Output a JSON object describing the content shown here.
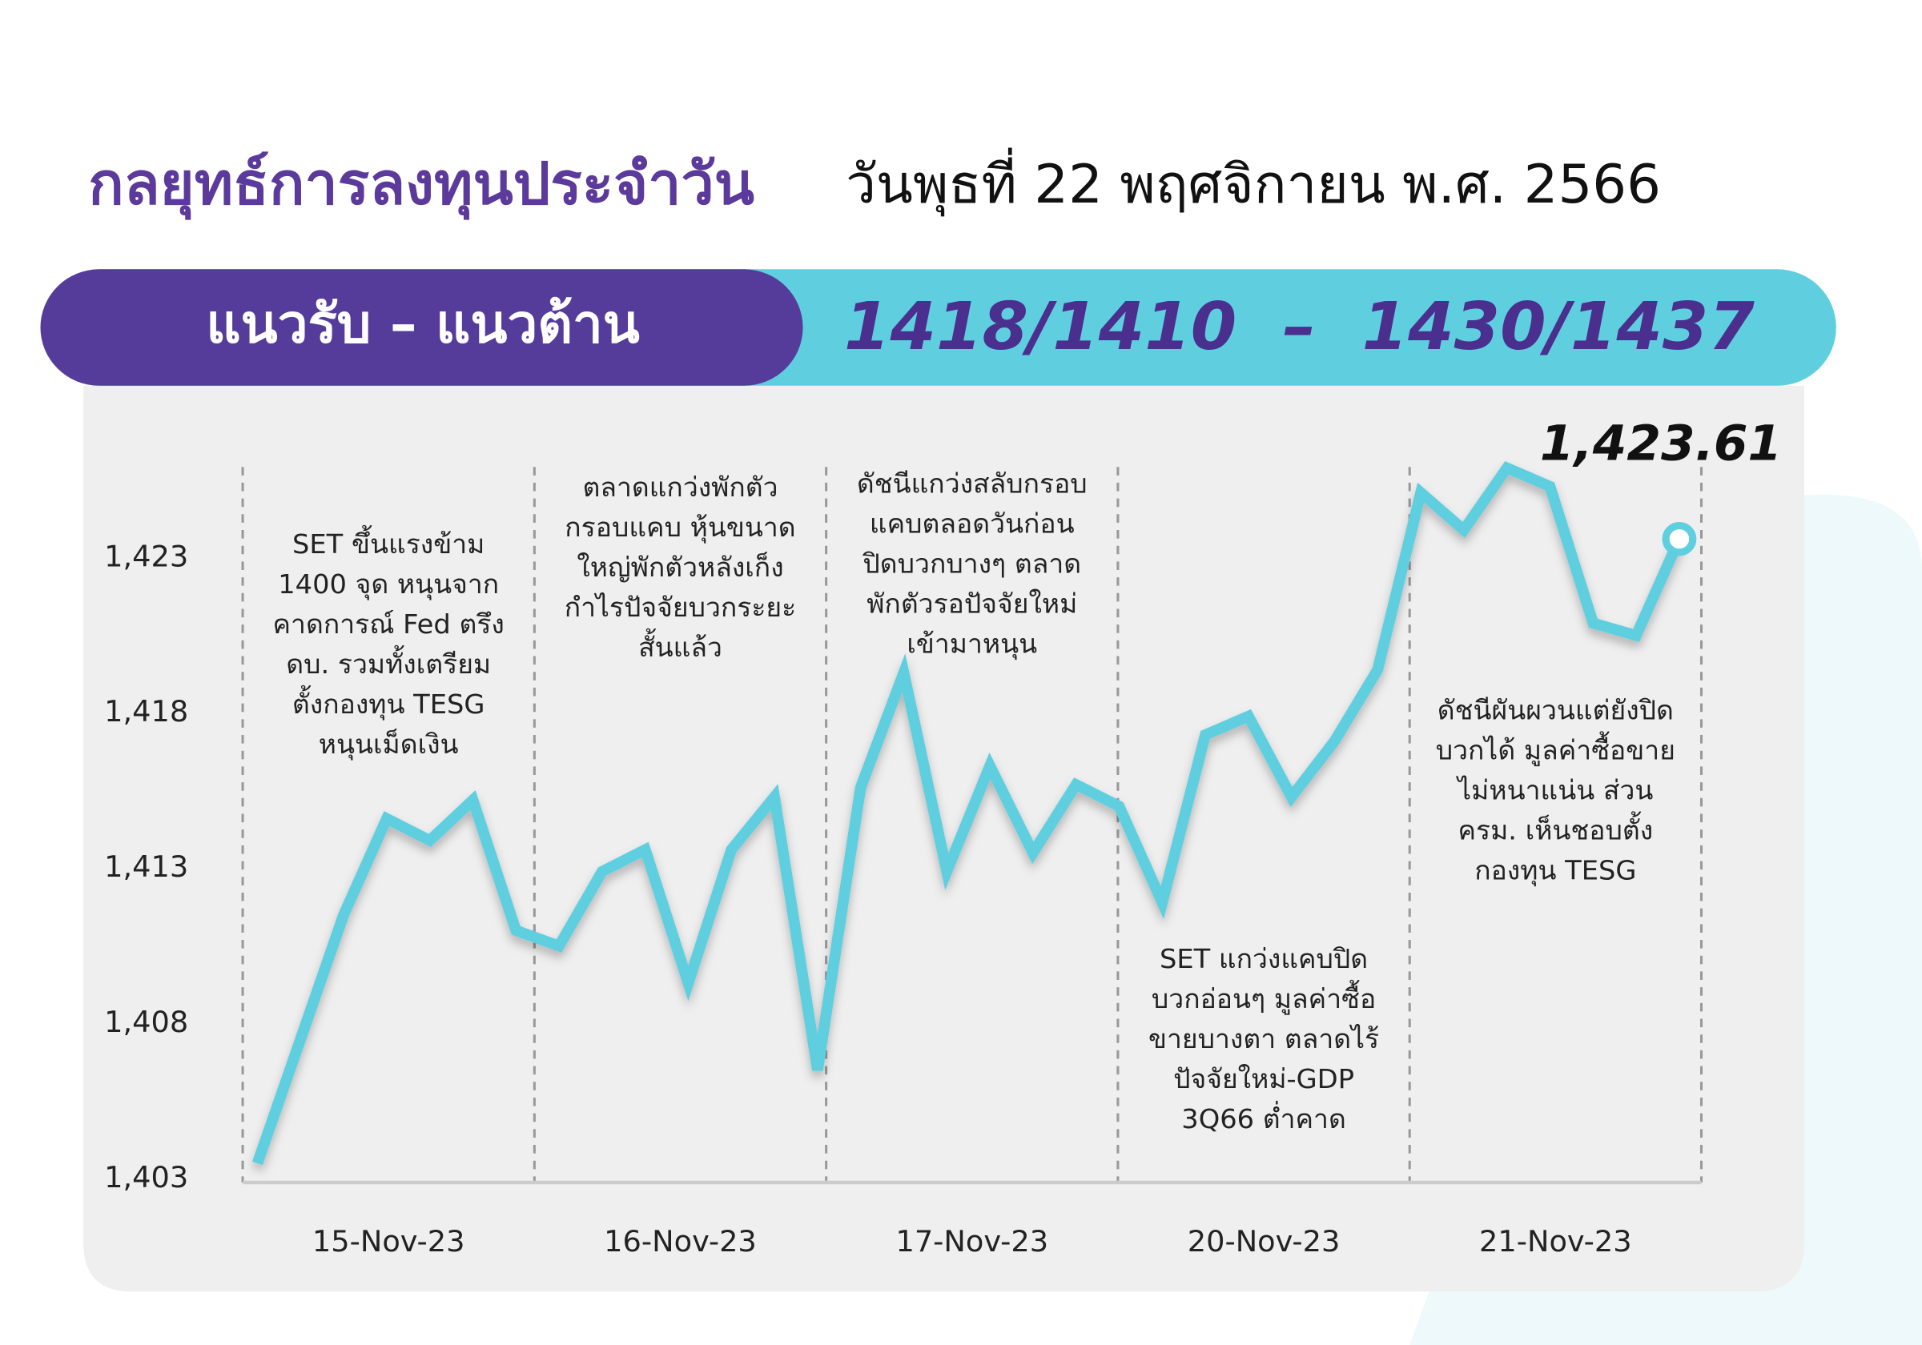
{
  "chart_data": {
    "type": "line",
    "title": "กลยุทธ์การลงทุนประจำวัน",
    "subtitle": "วันพุธที่ 22 พฤศจิกายน พ.ศ. 2566",
    "banner_label": "แนวรับ – แนวต้าน",
    "banner_values": "1418/1410  –  1430/1437",
    "color": "#5fcfe0",
    "categories": [
      null,
      null,
      null,
      "15-Nov-23",
      null,
      null,
      null,
      null,
      null,
      null,
      "16-Nov-23",
      null,
      null,
      null,
      null,
      null,
      null,
      "17-Nov-23",
      null,
      null,
      null,
      null,
      null,
      "20-Nov-23",
      null,
      null,
      null,
      null,
      null,
      null,
      "21-Nov-23",
      null,
      null,
      null
    ],
    "values": [
      1403.5,
      1407.5,
      1411.5,
      1414.6,
      1413.9,
      1415.2,
      1411.0,
      1410.5,
      1412.9,
      1413.6,
      1409.3,
      1413.6,
      1415.3,
      1406.5,
      1415.6,
      1419.3,
      1412.9,
      1416.3,
      1413.5,
      1415.7,
      1415.0,
      1411.9,
      1417.3,
      1417.9,
      1415.3,
      1417.1,
      1419.4,
      1425.1,
      1423.9,
      1425.9,
      1425.3,
      1420.9,
      1420.5,
      1423.61
    ],
    "value_labels": [
      null,
      null,
      null,
      null,
      null,
      null,
      null,
      null,
      null,
      null,
      null,
      null,
      null,
      null,
      null,
      null,
      null,
      null,
      null,
      null,
      null,
      null,
      null,
      null,
      null,
      null,
      null,
      null,
      null,
      null,
      null,
      null,
      null,
      "1,423.61"
    ],
    "ylim": [
      1403,
      1426
    ],
    "yticks": [
      {
        "value": 1403,
        "label": "1,403"
      },
      {
        "value": 1408,
        "label": "1,408"
      },
      {
        "value": 1413,
        "label": "1,413"
      },
      {
        "value": 1418,
        "label": "1,418"
      },
      {
        "value": 1423,
        "label": "1,423"
      }
    ],
    "annotations": [
      [
        "SET ขึ้นแรงข้าม",
        "1400 จุด หนุนจาก",
        "คาดการณ์ Fed ตรึง",
        "ดบ. รวมทั้งเตรียม",
        "ตั้งกองทุน TESG",
        "หนุนเม็ดเงิน"
      ],
      [
        "ตลาดแกว่งพักตัว",
        "กรอบแคบ หุ้นขนาด",
        "ใหญ่พักตัวหลังเก็ง",
        "กำไรปัจจัยบวกระยะ",
        "สั้นแล้ว"
      ],
      [
        "ดัชนีแกว่งสลับกรอบ",
        "แคบตลอดวันก่อน",
        "ปิดบวกบางๆ ตลาด",
        "พักตัวรอปัจจัยใหม่",
        "เข้ามาหนุน"
      ],
      [
        "SET แกว่งแคบปิด",
        "บวกอ่อนๆ มูลค่าซื้อ",
        "ขายบางตา ตลาดไร้",
        "ปัจจัยใหม่-GDP",
        "3Q66 ต่ำคาด"
      ],
      [
        "ดัชนีผันผวนแต่ยังปิด",
        "บวกได้ มูลค่าซื้อขาย",
        "ไม่หนาแน่น ส่วน",
        "ครม. เห็นชอบตั้ง",
        "กองทุน TESG"
      ]
    ]
  }
}
